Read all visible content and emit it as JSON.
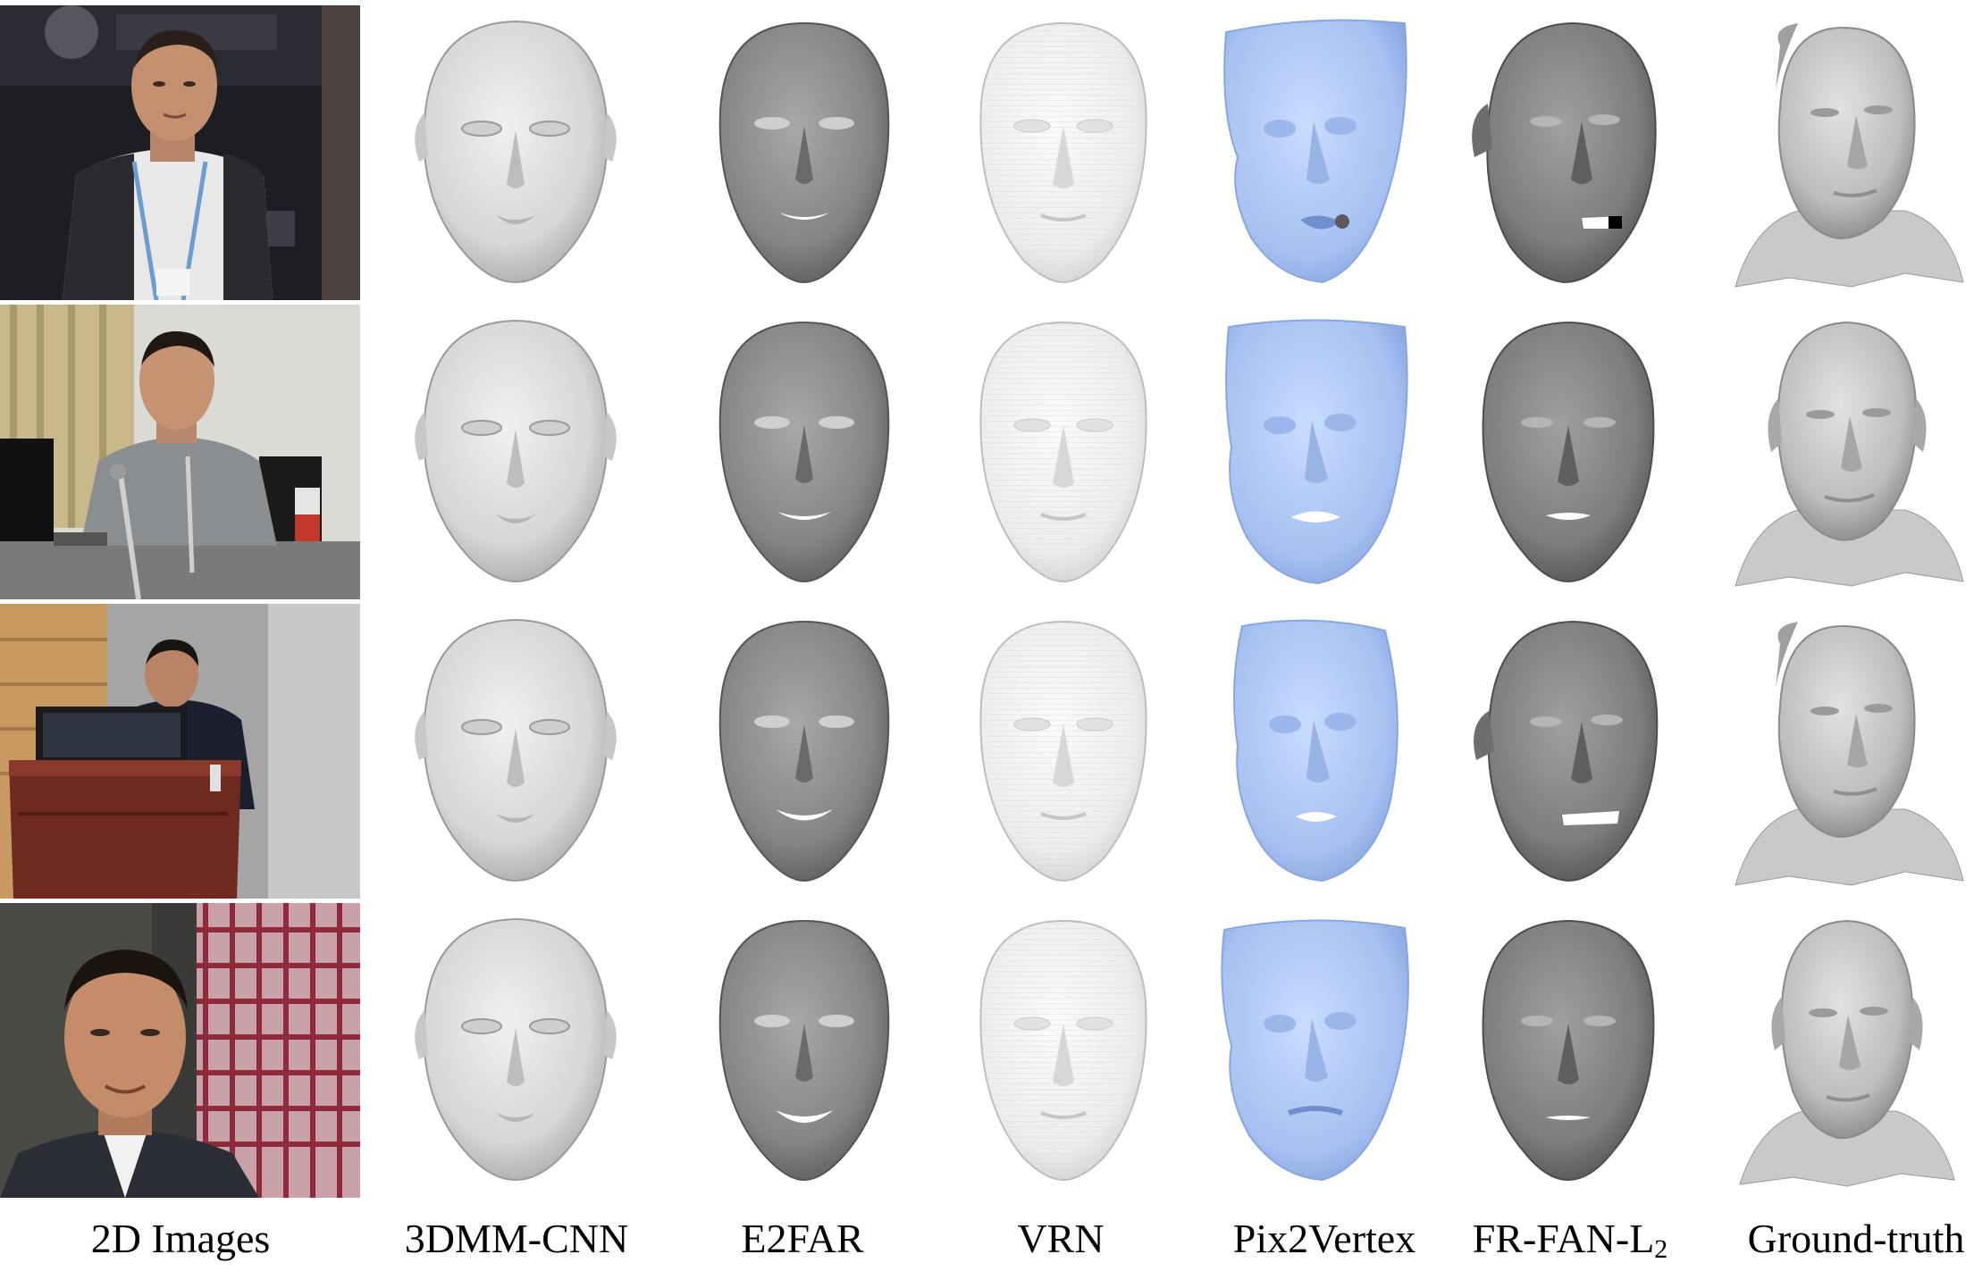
{
  "columns": [
    {
      "label": "2D Images"
    },
    {
      "label": "3DMM-CNN"
    },
    {
      "label": "E2FAR"
    },
    {
      "label": "VRN"
    },
    {
      "label": "Pix2Vertex"
    },
    {
      "label_main": "FR-FAN-L",
      "label_sub": "2"
    },
    {
      "label": "Ground-truth"
    }
  ],
  "rows": 4,
  "colors": {
    "3dmm": "#d9d9d9",
    "e2far": "#8c8c8c",
    "vrn": "#ececec",
    "pix2vertex": "#a9c3f2",
    "frfan": "#7f7f7f",
    "gt": "#bdbdbd"
  }
}
